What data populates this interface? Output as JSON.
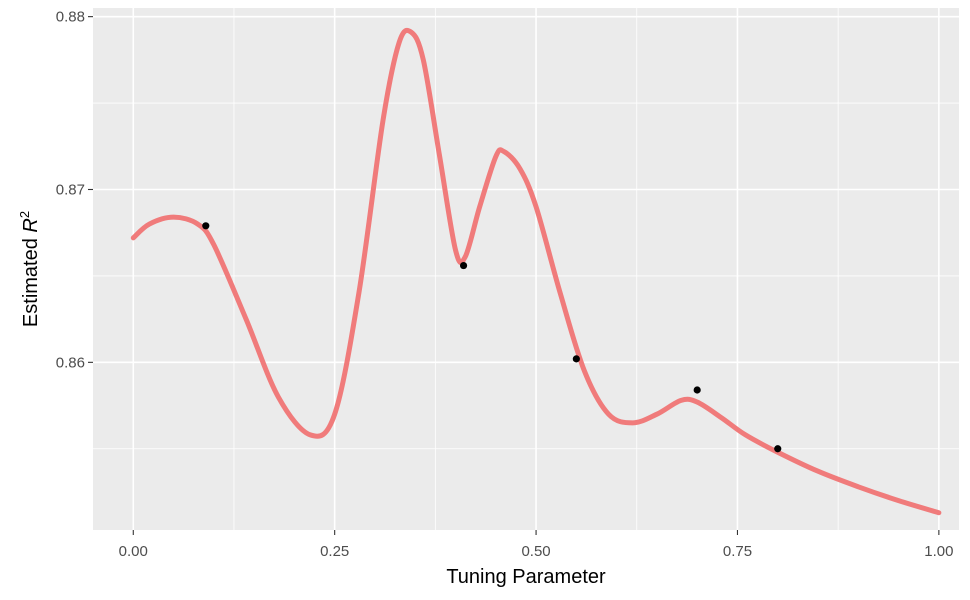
{
  "chart_data": {
    "type": "line",
    "title": "",
    "xlabel": "Tuning Parameter",
    "ylabel": {
      "prefix": "Estimated ",
      "symbol": "R",
      "superscript": "2"
    },
    "xlim": [
      -0.05,
      1.025
    ],
    "ylim": [
      0.8503,
      0.8805
    ],
    "x_ticks": [
      0.0,
      0.25,
      0.5,
      0.75,
      1.0
    ],
    "x_tick_labels": [
      "0.00",
      "0.25",
      "0.50",
      "0.75",
      "1.00"
    ],
    "y_ticks": [
      0.86,
      0.87,
      0.88
    ],
    "y_tick_labels": [
      "0.86",
      "0.87",
      "0.88"
    ],
    "grid": true,
    "background_color": "#ebebeb",
    "grid_color": "#ffffff",
    "series": [
      {
        "kind": "smooth-line",
        "color": "#f07b7b",
        "x": [
          0.0,
          0.02,
          0.05,
          0.08,
          0.1,
          0.14,
          0.18,
          0.22,
          0.25,
          0.28,
          0.31,
          0.33,
          0.345,
          0.36,
          0.38,
          0.4,
          0.412,
          0.43,
          0.45,
          0.46,
          0.48,
          0.5,
          0.53,
          0.56,
          0.59,
          0.62,
          0.65,
          0.68,
          0.7,
          0.73,
          0.76,
          0.8,
          0.85,
          0.9,
          0.95,
          1.0
        ],
        "y": [
          0.8672,
          0.868,
          0.8684,
          0.868,
          0.8668,
          0.8625,
          0.858,
          0.8558,
          0.857,
          0.864,
          0.874,
          0.8785,
          0.8791,
          0.8775,
          0.872,
          0.8665,
          0.8661,
          0.869,
          0.8719,
          0.8722,
          0.8712,
          0.869,
          0.864,
          0.8595,
          0.857,
          0.8565,
          0.857,
          0.8578,
          0.8577,
          0.8568,
          0.8558,
          0.8548,
          0.8537,
          0.8528,
          0.852,
          0.8513
        ]
      },
      {
        "kind": "points",
        "color": "#000000",
        "x": [
          0.09,
          0.41,
          0.55,
          0.7,
          0.8
        ],
        "y": [
          0.8679,
          0.8656,
          0.8602,
          0.8584,
          0.855
        ]
      }
    ]
  }
}
